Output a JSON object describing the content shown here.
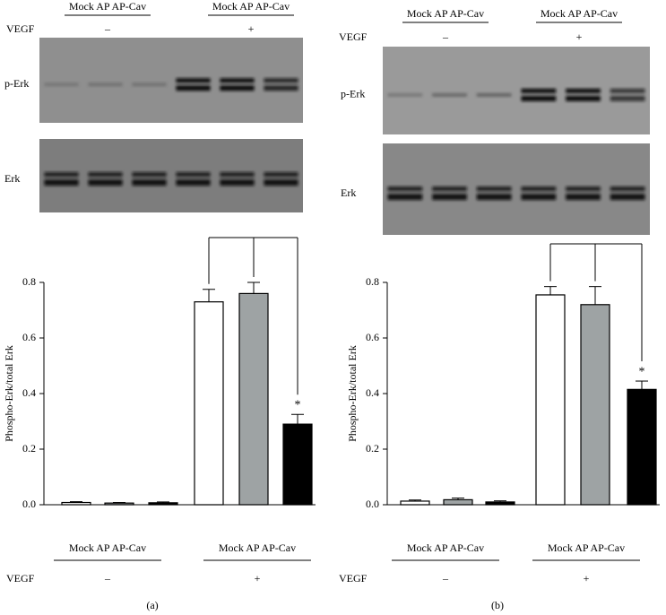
{
  "chart_data": [
    {
      "type": "bar",
      "panel_label": "(a)",
      "blot_group_labels": [
        "Mock AP AP-Cav",
        "Mock AP AP-Cav"
      ],
      "blot_treatment_label": "VEGF",
      "blot_treatment_signs": [
        "–",
        "+"
      ],
      "blot_rows": [
        "p-Erk",
        "Erk"
      ],
      "ylabel": "Phospho-Erk/total Erk",
      "ylim": [
        0,
        0.8
      ],
      "yticks": [
        {
          "value": 0,
          "label": "0.0"
        },
        0.2,
        0.4,
        0.6,
        0.8
      ],
      "categories": [
        null,
        null,
        null,
        null,
        null,
        null
      ],
      "values": [
        0.008,
        0.006,
        0.007,
        0.73,
        0.76,
        0.29
      ],
      "errors": [
        0.003,
        0.002,
        0.003,
        0.045,
        0.04,
        0.035
      ],
      "colors": [
        "#ffffff",
        "#9ea3a4",
        "#000000",
        "#ffffff",
        "#9ea3a4",
        "#000000"
      ],
      "annotation": "*",
      "group_labels": [
        "Mock AP AP-Cav",
        "Mock AP AP-Cav"
      ],
      "treatment_label": "VEGF",
      "treatment_signs": [
        "–",
        "+"
      ]
    },
    {
      "type": "bar",
      "panel_label": "(b)",
      "blot_group_labels": [
        "Mock AP AP-Cav",
        "Mock AP AP-Cav"
      ],
      "blot_treatment_label": "VEGF",
      "blot_treatment_signs": [
        "–",
        "+"
      ],
      "blot_rows": [
        "p-Erk",
        "Erk"
      ],
      "ylabel": "Phospho-Erk/total Erk",
      "ylim": [
        0,
        0.8
      ],
      "yticks": [
        {
          "value": 0,
          "label": "0.0"
        },
        0.2,
        0.4,
        0.6,
        0.8
      ],
      "categories": [
        null,
        null,
        null,
        null,
        null,
        null
      ],
      "values": [
        0.013,
        0.018,
        0.01,
        0.755,
        0.72,
        0.415
      ],
      "errors": [
        0.004,
        0.006,
        0.004,
        0.03,
        0.065,
        0.03
      ],
      "colors": [
        "#ffffff",
        "#9ea3a4",
        "#000000",
        "#ffffff",
        "#9ea3a4",
        "#000000"
      ],
      "annotation": "*",
      "group_labels": [
        "Mock AP AP-Cav",
        "Mock AP AP-Cav"
      ],
      "treatment_label": "VEGF",
      "treatment_signs": [
        "–",
        "+"
      ]
    }
  ]
}
